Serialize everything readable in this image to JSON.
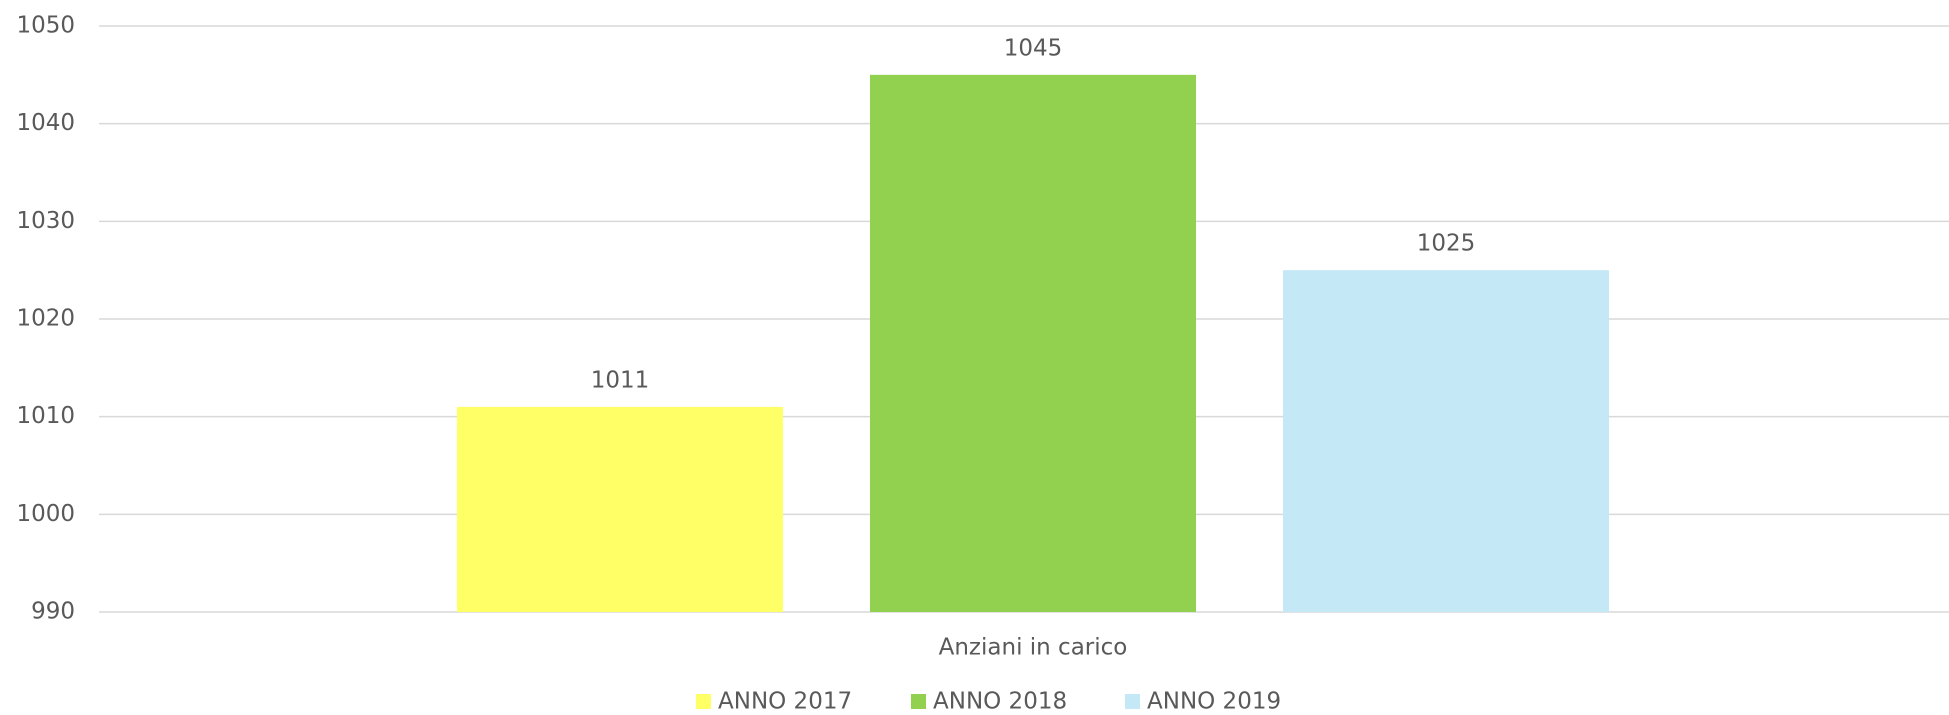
{
  "chart_data": {
    "type": "bar",
    "categories": [
      "Anziani in carico"
    ],
    "series": [
      {
        "name": "ANNO 2017",
        "color": "#ffff66",
        "values": [
          1011
        ]
      },
      {
        "name": "ANNO 2018",
        "color": "#92d050",
        "values": [
          1045
        ]
      },
      {
        "name": "ANNO 2019",
        "color": "#c5e8f7",
        "values": [
          1025
        ]
      }
    ],
    "ylim": [
      990,
      1050
    ],
    "yticks": [
      990,
      1000,
      1010,
      1020,
      1030,
      1040,
      1050
    ],
    "grid": true,
    "data_labels": true,
    "legend": "bottom"
  }
}
